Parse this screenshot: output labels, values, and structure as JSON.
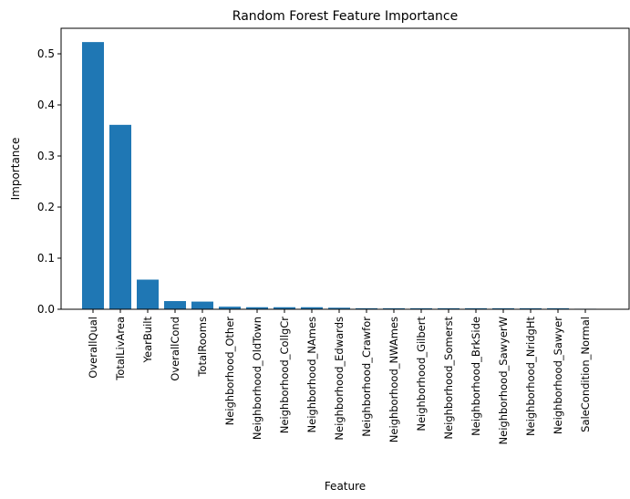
{
  "chart_data": {
    "type": "bar",
    "title": "Random Forest Feature Importance",
    "xlabel": "Feature",
    "ylabel": "Importance",
    "ylim": [
      0,
      0.55
    ],
    "yticks": [
      "0.0",
      "0.1",
      "0.2",
      "0.3",
      "0.4",
      "0.5"
    ],
    "grid": false,
    "bar_color": "#1f77b4",
    "categories": [
      "OverallQual",
      "TotalLivArea",
      "YearBuilt",
      "OverallCond",
      "TotalRooms",
      "Neighborhood_Other",
      "Neighborhood_OldTown",
      "Neighborhood_CollgCr",
      "Neighborhood_NAmes",
      "Neighborhood_Edwards",
      "Neighborhood_Crawfor",
      "Neighborhood_NWAmes",
      "Neighborhood_Gilbert",
      "Neighborhood_Somerst",
      "Neighborhood_BrkSide",
      "Neighborhood_SawyerW",
      "Neighborhood_NridgHt",
      "Neighborhood_Sawyer",
      "SaleCondition_Normal"
    ],
    "values": [
      0.523,
      0.361,
      0.058,
      0.016,
      0.015,
      0.005,
      0.004,
      0.004,
      0.004,
      0.003,
      0.002,
      0.002,
      0.002,
      0.002,
      0.002,
      0.002,
      0.002,
      0.002,
      0.001
    ]
  }
}
